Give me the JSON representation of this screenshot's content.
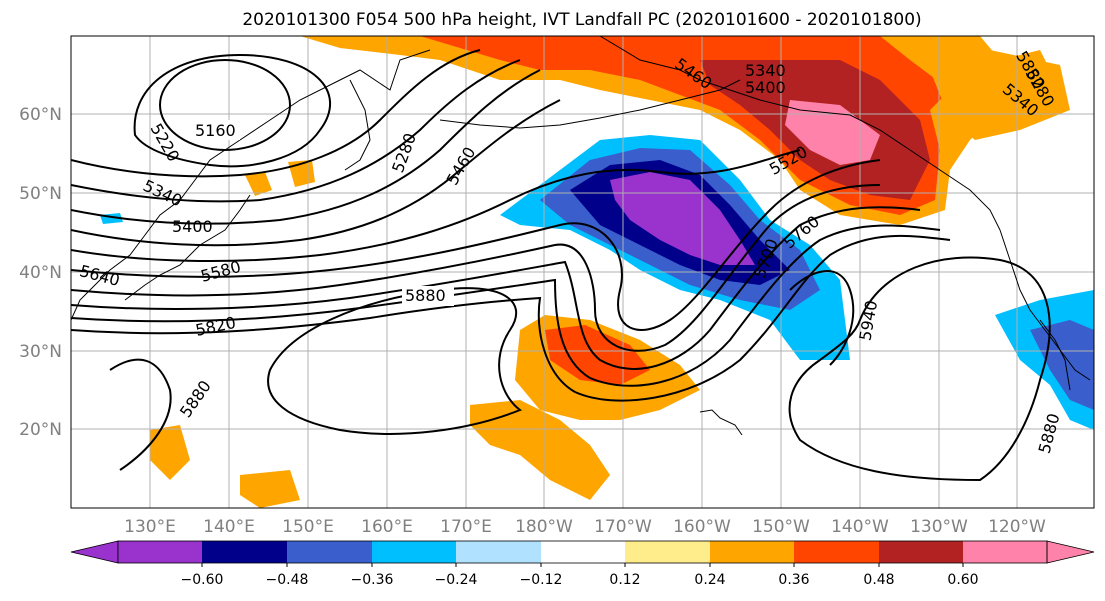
{
  "title": "2020101300 F054 500 hPa height, IVT Landfall PC (2020101600 - 2020101800)",
  "map": {
    "lon_labels": [
      "130°E",
      "140°E",
      "150°E",
      "160°E",
      "170°E",
      "180°W",
      "170°W",
      "160°W",
      "150°W",
      "140°W",
      "130°W",
      "120°W"
    ],
    "lat_labels": [
      "60°N",
      "50°N",
      "40°N",
      "30°N",
      "20°N"
    ],
    "grid_on": true
  },
  "contour_labels": [
    "5160",
    "5220",
    "5280",
    "5340",
    "5340",
    "5400",
    "5400",
    "5460",
    "5460",
    "5520",
    "5580",
    "5640",
    "5700",
    "5760",
    "5820",
    "5880",
    "5880",
    "5880",
    "5880",
    "5940",
    "5280",
    "5340"
  ],
  "colorbar": {
    "ticks": [
      "−0.60",
      "−0.48",
      "−0.36",
      "−0.24",
      "−0.12",
      "0.12",
      "0.24",
      "0.36",
      "0.48",
      "0.60"
    ],
    "colors": [
      "#9a32cd",
      "#00008b",
      "#3a5fcd",
      "#00bfff",
      "#b0e2ff",
      "#ffffff",
      "#ffec8b",
      "#ffa500",
      "#ff4500",
      "#b22222",
      "#ff82ab"
    ]
  },
  "chart_data": {
    "type": "map",
    "title": "2020101300 F054 500 hPa height, IVT Landfall PC (2020101600 - 2020101800)",
    "contour_values": [
      5160,
      5220,
      5280,
      5340,
      5400,
      5460,
      5520,
      5580,
      5640,
      5700,
      5760,
      5820,
      5880,
      5940
    ],
    "shading_levels": [
      -0.6,
      -0.48,
      -0.36,
      -0.24,
      -0.12,
      0.12,
      0.24,
      0.36,
      0.48,
      0.6
    ]
  }
}
